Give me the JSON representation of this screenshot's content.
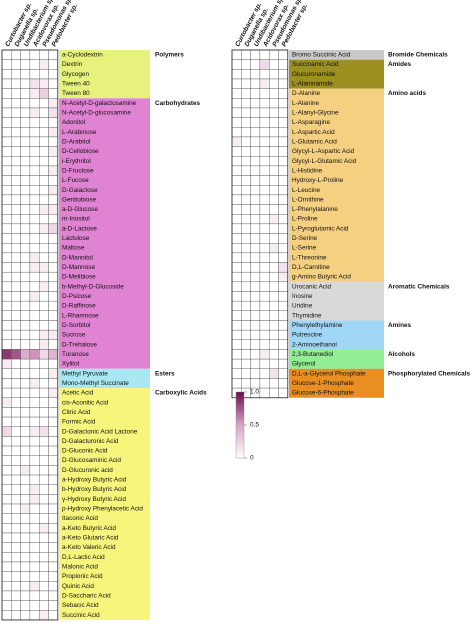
{
  "chart_data": [
    {
      "type": "heatmap",
      "columns": [
        "Curtobacter sp.",
        "Duganella sp.",
        "Undibacterium sp.",
        "Acidovorax sp.",
        "Pseudomonas sp.",
        "Pedobacter sp."
      ],
      "groups": [
        {
          "name": "Polymers",
          "color": "#e6f27c",
          "rows": [
            "a-Cyclodextrin",
            "Dextrin",
            "Glycogen",
            "Tween 40",
            "Tween 80"
          ],
          "values": [
            [
              0,
              0,
              0,
              0,
              0,
              0
            ],
            [
              0,
              0,
              0,
              0,
              0.1,
              0
            ],
            [
              0,
              0,
              0,
              0,
              0,
              0
            ],
            [
              0,
              0,
              0,
              0.15,
              0.1,
              0
            ],
            [
              0,
              0,
              0,
              0.1,
              0.25,
              0
            ]
          ]
        },
        {
          "name": "Carbohydrates",
          "color": "#e183d3",
          "rows": [
            "N-Acetyl-D-galactosamine",
            "N-Acetyl-D-glucosamine",
            "Adonitol",
            "L-Arabinose",
            "D-Arabitol",
            "D-Cellobiose",
            "i-Erythritol",
            "D-Fructose",
            "L-Fucose",
            "D-Galactose",
            "Gentiobiose",
            "a-D-Glucose",
            "m-Inositol",
            "a-D-Lactose",
            "Lactulose",
            "Maltose",
            "D-Mannitol",
            "D-Mannose",
            "D-Melibiose",
            "b-Methyl-D-Glucoside",
            "D-Psicose",
            "D-Raffinose",
            "L-Rhamnose",
            "D-Sorbitol",
            "Sucrose",
            "D-Trehalose",
            "Turanose",
            "Xylitol"
          ],
          "values": [
            [
              0,
              0,
              0,
              0,
              0,
              0.1
            ],
            [
              0,
              0,
              0,
              0.1,
              0,
              0.15
            ],
            [
              0,
              0,
              0,
              0,
              0,
              0
            ],
            [
              0,
              0,
              0,
              0,
              0,
              0.1
            ],
            [
              0,
              0,
              0,
              0,
              0,
              0
            ],
            [
              0,
              0,
              0,
              0,
              0,
              0.1
            ],
            [
              0,
              0,
              0,
              0,
              0,
              0
            ],
            [
              0,
              0,
              0,
              0,
              0,
              0.1
            ],
            [
              0,
              0,
              0,
              0,
              0,
              0
            ],
            [
              0,
              0,
              0,
              0,
              0,
              0.1
            ],
            [
              0,
              0,
              0,
              0,
              0,
              0
            ],
            [
              0,
              0,
              0,
              0,
              0.1,
              0.1
            ],
            [
              0,
              0,
              0,
              0,
              0,
              0
            ],
            [
              0,
              0,
              0,
              0,
              0.1,
              0.2
            ],
            [
              0,
              0,
              0,
              0,
              0,
              0
            ],
            [
              0,
              0,
              0,
              0,
              0,
              0
            ],
            [
              0,
              0,
              0,
              0.1,
              0,
              0
            ],
            [
              0,
              0,
              0,
              0.1,
              0.1,
              0
            ],
            [
              0,
              0,
              0,
              0,
              0,
              0
            ],
            [
              0,
              0,
              0,
              0,
              0.1,
              0
            ],
            [
              0,
              0,
              0,
              0.1,
              0,
              0
            ],
            [
              0,
              0,
              0,
              0,
              0,
              0
            ],
            [
              0,
              0,
              0,
              0,
              0,
              0
            ],
            [
              0,
              0,
              0,
              0,
              0,
              0
            ],
            [
              0,
              0,
              0,
              0,
              0.1,
              0.1
            ],
            [
              0,
              0,
              0,
              0,
              0.1,
              0
            ],
            [
              0.85,
              0.75,
              0.45,
              0.55,
              0.2,
              0.4
            ],
            [
              0.1,
              0,
              0,
              0,
              0,
              0
            ]
          ]
        },
        {
          "name": "Esters",
          "color": "#a9e8f2",
          "rows": [
            "Methyl Pyruvate",
            "Mono-Methyl Succinate"
          ],
          "values": [
            [
              0,
              0,
              0,
              0,
              0,
              0.1
            ],
            [
              0,
              0,
              0,
              0.1,
              0,
              0
            ]
          ]
        },
        {
          "name": "Carboxylic Acids",
          "color": "#f8f57c",
          "rows": [
            "Acetic Acid",
            "cis-Aconitic Acid",
            "Citric Acid",
            "Formic Acid",
            "D-Galactonic Acid Lactone",
            "D-Galacturonic Acid",
            "D-Gluconic Acid",
            "D-Glucosaminic Acid",
            "D-Glucuronic acid",
            "a-Hydroxy Butyric Acid",
            "b-Hydroxy Butyric Acid",
            "γ-Hydroxy Butyric Acid",
            "p-Hydroxy Phenylacetic Acid",
            "Itaconic Acid",
            "a-Keto Butyric Acid",
            "a-Keto Glutaric Acid",
            "a-Keto Valeric Acid",
            "D,L-Lactic Acid",
            "Malonic Acid",
            "Propionic Acid",
            "Quinic Acid",
            "D-Saccharic Acid",
            "Sebacic Acid",
            "Succinic Acid"
          ],
          "values": [
            [
              0,
              0,
              0,
              0,
              0,
              0.1
            ],
            [
              0.1,
              0,
              0,
              0,
              0,
              0
            ],
            [
              0,
              0,
              0,
              0,
              0,
              0
            ],
            [
              0,
              0,
              0,
              0,
              0,
              0
            ],
            [
              0.2,
              0,
              0,
              0.1,
              0.15,
              0
            ],
            [
              0,
              0,
              0,
              0,
              0,
              0
            ],
            [
              0,
              0,
              0,
              0,
              0,
              0
            ],
            [
              0,
              0,
              0,
              0,
              0,
              0
            ],
            [
              0,
              0,
              0.1,
              0,
              0,
              0
            ],
            [
              0,
              0,
              0,
              0,
              0,
              0
            ],
            [
              0,
              0,
              0,
              0.1,
              0,
              0
            ],
            [
              0,
              0,
              0,
              0.1,
              0,
              0
            ],
            [
              0,
              0,
              0.1,
              0,
              0,
              0
            ],
            [
              0,
              0,
              0,
              0,
              0,
              0
            ],
            [
              0,
              0,
              0,
              0,
              0.1,
              0
            ],
            [
              0,
              0,
              0,
              0,
              0,
              0
            ],
            [
              0,
              0,
              0,
              0,
              0,
              0
            ],
            [
              0,
              0,
              0,
              0,
              0,
              0
            ],
            [
              0,
              0,
              0,
              0,
              0,
              0
            ],
            [
              0,
              0,
              0,
              0,
              0,
              0
            ],
            [
              0,
              0,
              0,
              0.1,
              0,
              0
            ],
            [
              0,
              0,
              0,
              0,
              0,
              0
            ],
            [
              0,
              0,
              0,
              0,
              0,
              0
            ],
            [
              0,
              0,
              0,
              0,
              0.1,
              0
            ]
          ]
        }
      ]
    },
    {
      "type": "heatmap",
      "columns": [
        "Curtobacter sp.",
        "Duganella sp.",
        "Undibacterium sp.",
        "Acidovorax sp.",
        "Pseudomonas sp.",
        "Pedobacter sp."
      ],
      "groups": [
        {
          "name": "Bromide Chemicals",
          "color": "#c9c9c9",
          "rows": [
            "Bromo Succinic Acid"
          ],
          "values": [
            [
              0,
              0,
              0,
              0,
              0,
              0
            ]
          ]
        },
        {
          "name": "Amides",
          "color": "#9c9020",
          "rows": [
            "Succinamic Acid",
            "Glucuronamide",
            "L-Alaninamide"
          ],
          "values": [
            [
              0,
              0,
              0,
              0.2,
              0,
              0
            ],
            [
              0,
              0,
              0,
              0,
              0,
              0
            ],
            [
              0,
              0,
              0,
              0.1,
              0,
              0
            ]
          ]
        },
        {
          "name": "Amino acids",
          "color": "#f6d081",
          "rows": [
            "D-Alanine",
            "L-Alanine",
            "L-Alanyl-Glycine",
            "L-Asparagine",
            "L-Aspartic Acid",
            "L-Glutamic Acid",
            "Glycyl-L-Aspartic Acid",
            "Glycyl-L-Glutamic Acid",
            "L-Histidine",
            "Hydroxy-L-Proline",
            "L-Leucine",
            "L-Ornithine",
            "L-Phenylalanine",
            "L-Proline",
            "L-Pyroglutamic Acid",
            "D-Serine",
            "L-Serine",
            "L-Threonine",
            "D,L-Carnitine",
            "g-Amino Butyric Acid"
          ],
          "values": [
            [
              0,
              0,
              0,
              0,
              0,
              0
            ],
            [
              0,
              0,
              0,
              0,
              0,
              0
            ],
            [
              0,
              0,
              0,
              0,
              0,
              0
            ],
            [
              0,
              0,
              0,
              0,
              0,
              0
            ],
            [
              0,
              0,
              0,
              0,
              0,
              0
            ],
            [
              0.1,
              0,
              0,
              0,
              0,
              0
            ],
            [
              0,
              0,
              0,
              0,
              0,
              0
            ],
            [
              0,
              0,
              0,
              0,
              0,
              0
            ],
            [
              0,
              0,
              0,
              0,
              0,
              0
            ],
            [
              0,
              0,
              0,
              0,
              0,
              0
            ],
            [
              0,
              0,
              0,
              0,
              0,
              0
            ],
            [
              0,
              0,
              0,
              0,
              0,
              0
            ],
            [
              0,
              0,
              0,
              0,
              0,
              0
            ],
            [
              0,
              0,
              0,
              0,
              0.1,
              0
            ],
            [
              0,
              0,
              0,
              0,
              0,
              0
            ],
            [
              0,
              0,
              0,
              0,
              0,
              0
            ],
            [
              0,
              0,
              0,
              0,
              0.1,
              0
            ],
            [
              0,
              0,
              0,
              0,
              0,
              0
            ],
            [
              0,
              0,
              0,
              0,
              0,
              0.15
            ],
            [
              0,
              0,
              0,
              0,
              0,
              0.1
            ]
          ]
        },
        {
          "name": "Aromatic Chemicals",
          "color": "#d9d9d9",
          "rows": [
            "Urocanic Acid",
            "Inosine",
            "Uridine",
            "Thymidine"
          ],
          "values": [
            [
              0,
              0,
              0,
              0,
              0,
              0
            ],
            [
              0,
              0,
              0,
              0,
              0,
              0
            ],
            [
              0,
              0,
              0,
              0,
              0,
              0
            ],
            [
              0,
              0,
              0,
              0,
              0,
              0
            ]
          ]
        },
        {
          "name": "Amines",
          "color": "#a0d6f6",
          "rows": [
            "Phenylethylamine",
            "Putrescine",
            "2-Aminoethanol"
          ],
          "values": [
            [
              0,
              0,
              0,
              0,
              0,
              0
            ],
            [
              0,
              0,
              0,
              0,
              0,
              0
            ],
            [
              0,
              0,
              0,
              0,
              0,
              0
            ]
          ]
        },
        {
          "name": "Alcohols",
          "color": "#92ee92",
          "rows": [
            "2,3-Butanediol",
            "Glycerol"
          ],
          "values": [
            [
              0,
              0,
              0,
              0.1,
              0,
              0
            ],
            [
              0,
              0,
              0,
              0,
              0,
              0
            ]
          ]
        },
        {
          "name": "Phosphorylated Chemicals",
          "color": "#e98f22",
          "rows": [
            "D,L-a-Glycerol Phosphate",
            "Glucose-1-Phosphate",
            "Glucose-6-Phosphate"
          ],
          "values": [
            [
              0,
              0,
              0,
              0,
              0.15,
              0
            ],
            [
              0,
              0,
              0,
              0,
              0,
              0
            ],
            [
              0,
              0,
              0,
              0,
              0,
              0
            ]
          ]
        }
      ],
      "colorbar": {
        "lim": [
          0,
          1
        ],
        "ticks": [
          {
            "value": 1,
            "label": "1.0"
          },
          0.5,
          0
        ],
        "colors": [
          "#ffffff",
          "#d9a3c5",
          "#6b0b4b"
        ]
      }
    }
  ]
}
